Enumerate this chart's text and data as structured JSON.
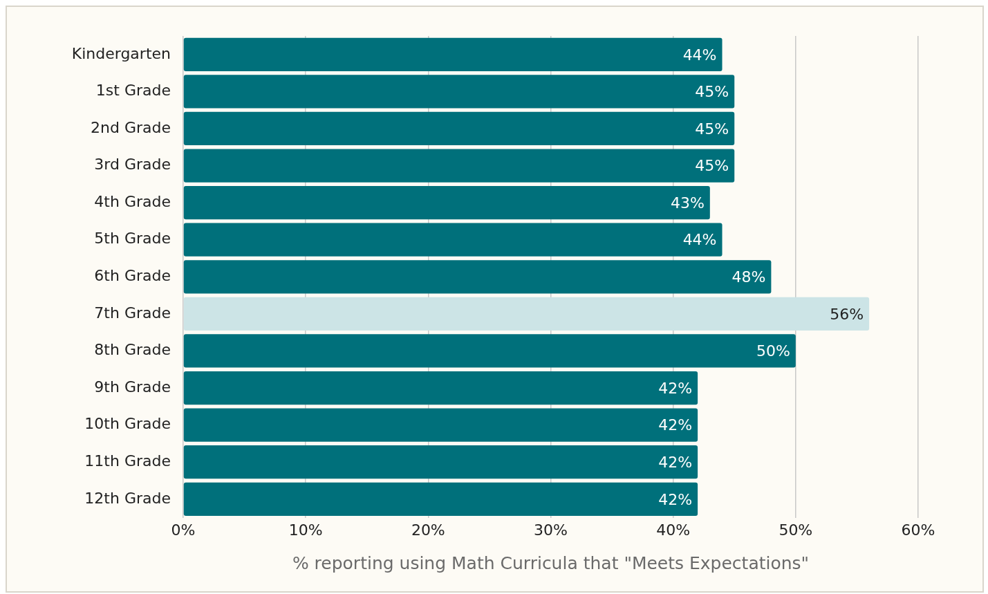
{
  "chart_data": {
    "type": "bar",
    "orientation": "horizontal",
    "xlabel": "% reporting using Math Curricula that \"Meets Expectations\"",
    "categories": [
      "Kindergarten",
      "1st Grade",
      "2nd Grade",
      "3rd Grade",
      "4th Grade",
      "5th Grade",
      "6th Grade",
      "7th Grade",
      "8th Grade",
      "9th Grade",
      "10th Grade",
      "11th Grade",
      "12th Grade"
    ],
    "values": [
      44,
      45,
      45,
      45,
      43,
      44,
      48,
      56,
      50,
      42,
      42,
      42,
      42
    ],
    "colors": [
      "#00707b",
      "#00707b",
      "#00707b",
      "#00707b",
      "#00707b",
      "#00707b",
      "#00707b",
      "#cce4e6",
      "#00707b",
      "#00707b",
      "#00707b",
      "#00707b",
      "#00707b"
    ],
    "value_labels": [
      "44%",
      "45%",
      "45%",
      "45%",
      "43%",
      "44%",
      "48%",
      "56%",
      "50%",
      "42%",
      "42%",
      "42%",
      "42%"
    ],
    "xlim": [
      0,
      60
    ],
    "xticks": [
      {
        "value": 0,
        "label": "0%"
      },
      {
        "value": 10,
        "label": "10%"
      },
      {
        "value": 20,
        "label": "20%"
      },
      {
        "value": 30,
        "label": "30%"
      },
      {
        "value": 40,
        "label": "40%"
      },
      {
        "value": 50,
        "label": "50%"
      },
      {
        "value": 60,
        "label": "60%"
      }
    ],
    "grid": "x",
    "legend": false
  }
}
